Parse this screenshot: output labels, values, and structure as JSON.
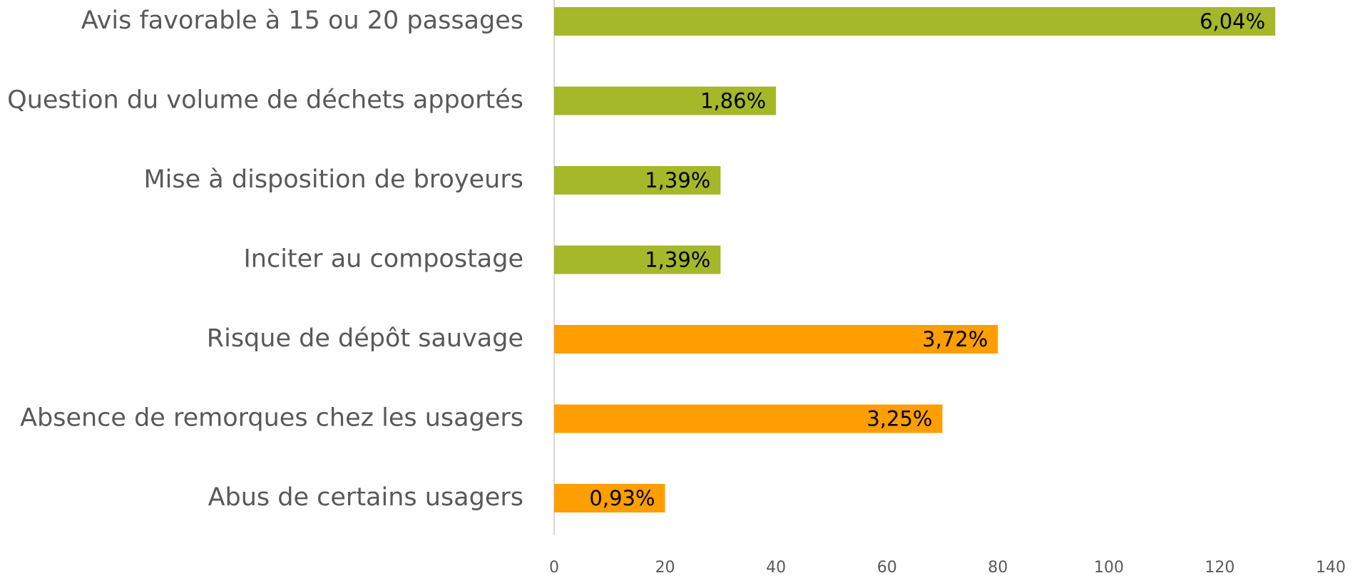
{
  "chart_data": {
    "type": "barh",
    "categories": [
      "Avis favorable à 15 ou 20 passages",
      "Question du volume de déchets apportés",
      "Mise à disposition de broyeurs",
      "Inciter au compostage",
      "Risque de dépôt sauvage",
      "Absence de remorques chez les usagers",
      "Abus de certains usagers"
    ],
    "values": [
      130,
      40,
      30,
      30,
      80,
      70,
      20
    ],
    "data_labels": [
      "6,04%",
      "1,86%",
      "1,39%",
      "1,39%",
      "3,72%",
      "3,25%",
      "0,93%"
    ],
    "colors": [
      "#a5b82a",
      "#a5b82a",
      "#a5b82a",
      "#a5b82a",
      "#ff9e00",
      "#ff9e00",
      "#ff9e00"
    ],
    "xlim": [
      0,
      140
    ],
    "xticks": [
      0,
      20,
      40,
      60,
      80,
      100,
      120,
      140
    ],
    "grid": false
  }
}
